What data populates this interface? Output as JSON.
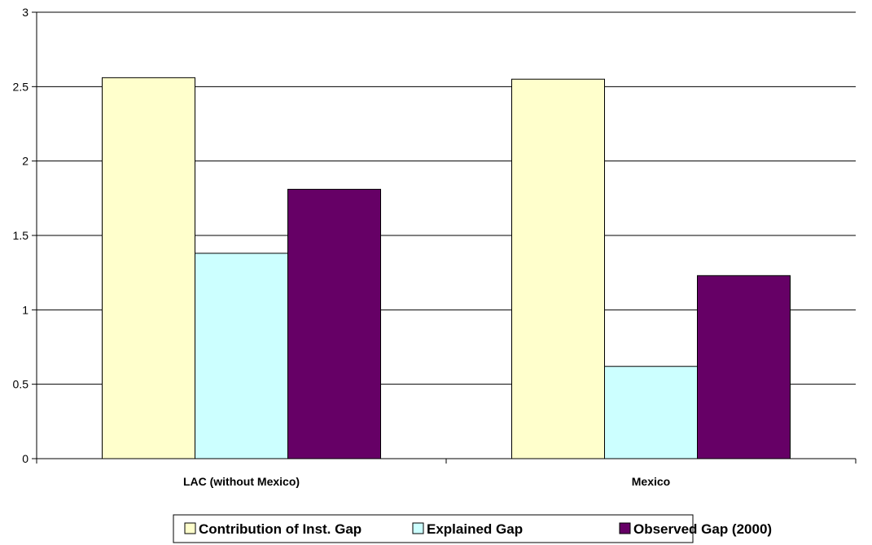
{
  "chart_data": {
    "type": "bar",
    "categories": [
      "LAC (without Mexico)",
      "Mexico"
    ],
    "series": [
      {
        "name": "Contribution of Inst. Gap",
        "values": [
          2.56,
          2.55
        ],
        "color": "#FFFFCC"
      },
      {
        "name": "Explained Gap",
        "values": [
          1.38,
          0.62
        ],
        "color": "#CCFFFF"
      },
      {
        "name": "Observed Gap (2000)",
        "values": [
          1.81,
          1.23
        ],
        "color": "#660066"
      }
    ],
    "ylim": [
      0,
      3
    ],
    "yticks": [
      "0",
      "0.5",
      "1",
      "1.5",
      "2",
      "2.5",
      "3"
    ],
    "ytick_values": [
      0,
      0.5,
      1,
      1.5,
      2,
      2.5,
      3
    ],
    "grid": true,
    "legend_position": "bottom"
  }
}
